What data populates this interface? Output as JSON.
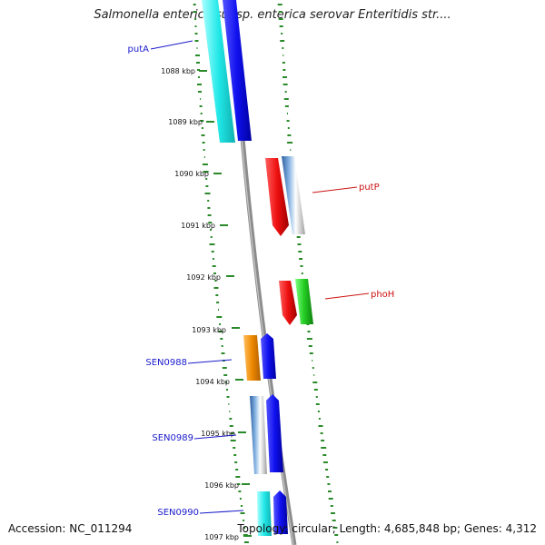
{
  "header": {
    "title": "Salmonella enterica subsp. enterica serovar Enteritidis str...."
  },
  "footer": {
    "accession": "Accession: NC_011294",
    "topology": "Topology: circular; Length: 4,685,848 bp; Genes: 4,312"
  },
  "ruler": {
    "ticks": [
      "1088 kbp",
      "1089 kbp",
      "1090 kbp",
      "1091 kbp",
      "1092 kbp",
      "1093 kbp",
      "1094 kbp",
      "1095 kbp",
      "1096 kbp",
      "1097 kbp"
    ]
  },
  "genes": [
    {
      "label": "putA",
      "color": "#1a1acc"
    },
    {
      "label": "putP",
      "color": "#cc1111"
    },
    {
      "label": "phoH",
      "color": "#cc1111"
    },
    {
      "label": "SEN0988",
      "color": "#1a1acc"
    },
    {
      "label": "SEN0989",
      "color": "#1a1acc"
    },
    {
      "label": "SEN0990",
      "color": "#1a1acc"
    }
  ],
  "colors": {
    "backbone": "#8a8a8a",
    "gc_dots": "#2a8a2a",
    "cyan": "#22e0e0",
    "blue": "#1111ee",
    "red": "#ee1111",
    "orange": "#ee8800",
    "green": "#22cc22",
    "steelblue": "#4a7fb0"
  }
}
